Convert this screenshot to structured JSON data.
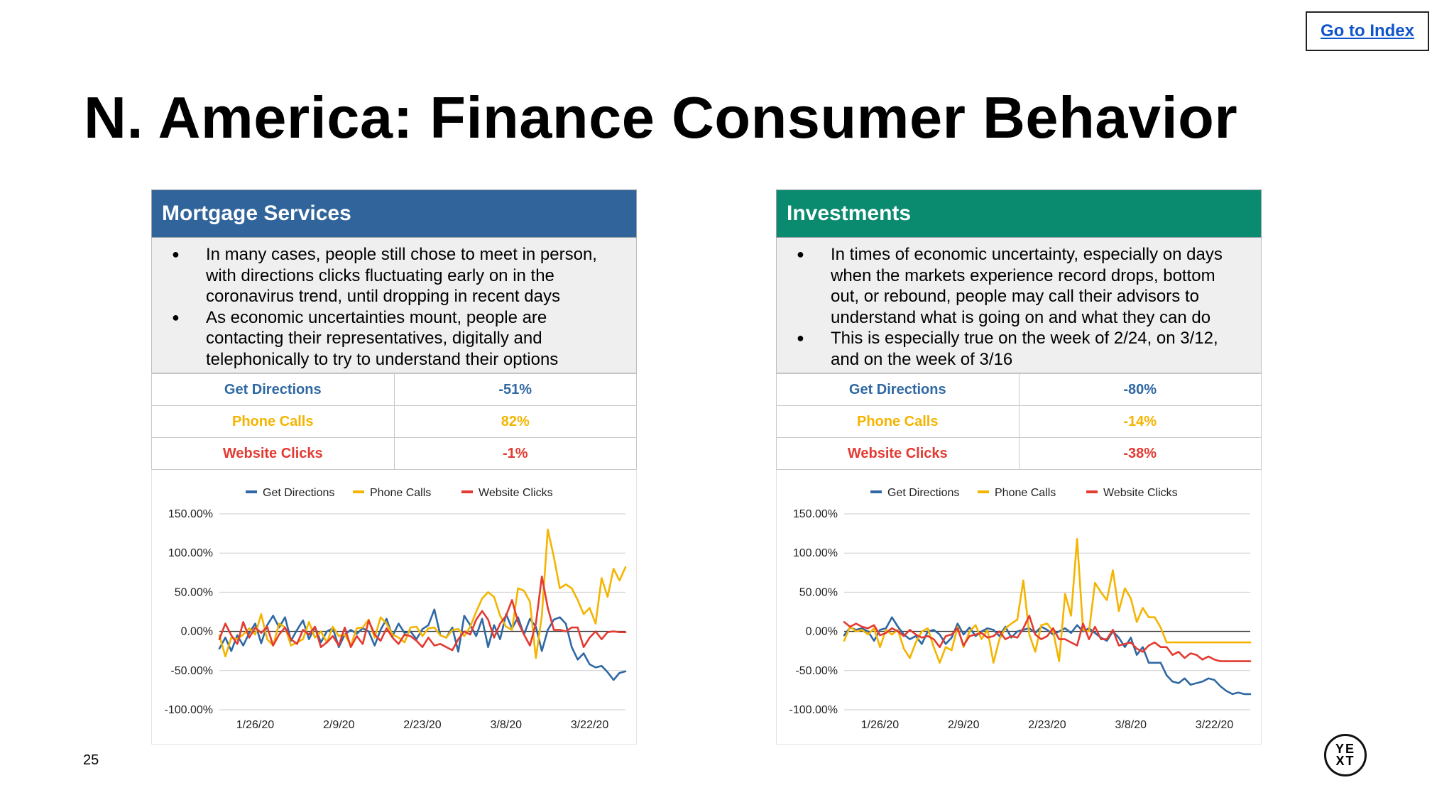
{
  "index_link": "Go to Index",
  "title": "N. America: Finance Consumer Behavior",
  "page_number": "25",
  "logo": {
    "line1": "YE",
    "line2": "XT"
  },
  "colors": {
    "mortgage_header": "#31649a",
    "invest_header": "#0a8a6e",
    "get_directions": "#2f68a3",
    "phone_calls": "#f4b400",
    "website_clicks": "#e33a31"
  },
  "panels": [
    {
      "id": "mortgage",
      "header": "Mortgage Services",
      "notes": [
        "In many cases, people still chose to meet in person, with directions clicks fluctuating early on in the coronavirus trend, until dropping in recent days",
        "As economic uncertainties mount, people are contacting their representatives, digitally and telephonically to try to understand their options"
      ],
      "metrics": [
        {
          "label": "Get Directions",
          "value": "-51%"
        },
        {
          "label": "Phone Calls",
          "value": "82%"
        },
        {
          "label": "Website Clicks",
          "value": "-1%"
        }
      ]
    },
    {
      "id": "investments",
      "header": "Investments",
      "notes": [
        "In times of economic uncertainty, especially on days when the markets experience record drops, bottom out, or rebound, people may call their advisors to understand what is going on and what they can do",
        "This is especially true on the week of 2/24, on 3/12, and on the week of 3/16"
      ],
      "metrics": [
        {
          "label": "Get Directions",
          "value": "-80%"
        },
        {
          "label": "Phone Calls",
          "value": "-14%"
        },
        {
          "label": "Website Clicks",
          "value": "-38%"
        }
      ]
    }
  ],
  "chart_data": [
    {
      "type": "line",
      "title": "Mortgage Services",
      "x_dates": [
        "1/20/20",
        "1/21/20",
        "1/22/20",
        "1/23/20",
        "1/24/20",
        "1/25/20",
        "1/26/20",
        "1/27/20",
        "1/28/20",
        "1/29/20",
        "1/30/20",
        "1/31/20",
        "2/1/20",
        "2/2/20",
        "2/3/20",
        "2/4/20",
        "2/5/20",
        "2/6/20",
        "2/7/20",
        "2/8/20",
        "2/9/20",
        "2/10/20",
        "2/11/20",
        "2/12/20",
        "2/13/20",
        "2/14/20",
        "2/15/20",
        "2/16/20",
        "2/17/20",
        "2/18/20",
        "2/19/20",
        "2/20/20",
        "2/21/20",
        "2/22/20",
        "2/23/20",
        "2/24/20",
        "2/25/20",
        "2/26/20",
        "2/27/20",
        "2/28/20",
        "2/29/20",
        "3/1/20",
        "3/2/20",
        "3/3/20",
        "3/4/20",
        "3/5/20",
        "3/6/20",
        "3/7/20",
        "3/8/20",
        "3/9/20",
        "3/10/20",
        "3/11/20",
        "3/12/20",
        "3/13/20",
        "3/14/20",
        "3/15/20",
        "3/16/20",
        "3/17/20",
        "3/18/20",
        "3/19/20",
        "3/20/20",
        "3/21/20",
        "3/22/20",
        "3/23/20",
        "3/24/20",
        "3/25/20",
        "3/26/20",
        "3/27/20",
        "3/28/20"
      ],
      "x_ticks": [
        "1/26/20",
        "2/9/20",
        "2/23/20",
        "3/8/20",
        "3/22/20"
      ],
      "y_ticks": [
        "150.00%",
        "100.00%",
        "50.00%",
        "0.00%",
        "-50.00%",
        "-100.00%"
      ],
      "ylim": [
        -100,
        150
      ],
      "legend": "top-center",
      "series": [
        {
          "name": "Get Directions",
          "values": [
            -22,
            -8,
            -25,
            -5,
            -18,
            -2,
            10,
            -15,
            8,
            20,
            5,
            18,
            -12,
            2,
            14,
            -10,
            6,
            -14,
            0,
            4,
            -20,
            -4,
            2,
            -3,
            4,
            0,
            -18,
            2,
            16,
            -6,
            10,
            -2,
            0,
            -10,
            3,
            8,
            28,
            -5,
            -8,
            5,
            -26,
            20,
            8,
            -6,
            16,
            -20,
            8,
            -10,
            22,
            4,
            18,
            -4,
            16,
            6,
            -25,
            2,
            15,
            18,
            10,
            -20,
            -36,
            -28,
            -42,
            -46,
            -44,
            -52,
            -62,
            -53,
            -51
          ]
        },
        {
          "name": "Phone Calls",
          "values": [
            -5,
            -32,
            -8,
            -10,
            -4,
            4,
            -4,
            22,
            -10,
            -18,
            10,
            5,
            -18,
            -14,
            -10,
            12,
            -8,
            0,
            -14,
            6,
            -6,
            -4,
            -18,
            4,
            5,
            15,
            -8,
            18,
            10,
            -4,
            -8,
            -14,
            5,
            6,
            -6,
            4,
            5,
            -5,
            -8,
            2,
            3,
            -6,
            6,
            25,
            42,
            50,
            44,
            20,
            6,
            2,
            55,
            52,
            38,
            -34,
            20,
            130,
            95,
            55,
            60,
            55,
            40,
            22,
            30,
            10,
            68,
            44,
            80,
            65,
            82
          ]
        },
        {
          "name": "Website Clicks",
          "values": [
            -10,
            10,
            -5,
            -16,
            12,
            -8,
            5,
            -2,
            6,
            -18,
            -4,
            5,
            -10,
            -16,
            2,
            -4,
            6,
            -20,
            -14,
            -6,
            -18,
            5,
            -20,
            -6,
            -16,
            14,
            -4,
            -12,
            4,
            -8,
            -16,
            -4,
            -6,
            -12,
            -20,
            -8,
            -18,
            -16,
            -20,
            -24,
            -10,
            0,
            -4,
            15,
            26,
            15,
            -8,
            10,
            20,
            40,
            12,
            -4,
            -18,
            10,
            70,
            30,
            2,
            2,
            0,
            5,
            5,
            -20,
            -8,
            0,
            -10,
            -1,
            0,
            -1,
            -1
          ]
        }
      ]
    },
    {
      "type": "line",
      "title": "Investments",
      "x_dates": [
        "1/20/20",
        "1/21/20",
        "1/22/20",
        "1/23/20",
        "1/24/20",
        "1/25/20",
        "1/26/20",
        "1/27/20",
        "1/28/20",
        "1/29/20",
        "1/30/20",
        "1/31/20",
        "2/1/20",
        "2/2/20",
        "2/3/20",
        "2/4/20",
        "2/5/20",
        "2/6/20",
        "2/7/20",
        "2/8/20",
        "2/9/20",
        "2/10/20",
        "2/11/20",
        "2/12/20",
        "2/13/20",
        "2/14/20",
        "2/15/20",
        "2/16/20",
        "2/17/20",
        "2/18/20",
        "2/19/20",
        "2/20/20",
        "2/21/20",
        "2/22/20",
        "2/23/20",
        "2/24/20",
        "2/25/20",
        "2/26/20",
        "2/27/20",
        "2/28/20",
        "2/29/20",
        "3/1/20",
        "3/2/20",
        "3/3/20",
        "3/4/20",
        "3/5/20",
        "3/6/20",
        "3/7/20",
        "3/8/20",
        "3/9/20",
        "3/10/20",
        "3/11/20",
        "3/12/20",
        "3/13/20",
        "3/14/20",
        "3/15/20",
        "3/16/20",
        "3/17/20",
        "3/18/20",
        "3/19/20",
        "3/20/20",
        "3/21/20",
        "3/22/20",
        "3/23/20",
        "3/24/20",
        "3/25/20",
        "3/26/20",
        "3/27/20",
        "3/28/20"
      ],
      "x_ticks": [
        "1/26/20",
        "2/9/20",
        "2/23/20",
        "3/8/20",
        "3/22/20"
      ],
      "y_ticks": [
        "150.00%",
        "100.00%",
        "50.00%",
        "0.00%",
        "-50.00%",
        "-100.00%"
      ],
      "ylim": [
        -100,
        150
      ],
      "legend": "top-center",
      "series": [
        {
          "name": "Get Directions",
          "values": [
            -5,
            5,
            2,
            4,
            0,
            -12,
            2,
            4,
            18,
            6,
            -4,
            -10,
            -6,
            -16,
            0,
            2,
            -4,
            -16,
            -8,
            10,
            -4,
            5,
            -6,
            0,
            4,
            2,
            -6,
            6,
            -8,
            0,
            2,
            4,
            -2,
            6,
            2,
            -4,
            0,
            4,
            -2,
            8,
            0,
            4,
            -2,
            -8,
            -12,
            0,
            -8,
            -20,
            -8,
            -30,
            -20,
            -40,
            -40,
            -40,
            -56,
            -64,
            -66,
            -60,
            -68,
            -66,
            -64,
            -60,
            -62,
            -70,
            -76,
            -80,
            -78,
            -80,
            -80
          ]
        },
        {
          "name": "Phone Calls",
          "values": [
            -12,
            6,
            0,
            2,
            -4,
            4,
            -20,
            2,
            -4,
            2,
            -22,
            -34,
            -14,
            0,
            4,
            -20,
            -40,
            -20,
            -24,
            6,
            -20,
            0,
            8,
            -10,
            2,
            -40,
            -10,
            4,
            10,
            15,
            65,
            -4,
            -26,
            8,
            10,
            0,
            -38,
            48,
            20,
            118,
            2,
            0,
            62,
            50,
            40,
            78,
            26,
            55,
            42,
            12,
            30,
            18,
            18,
            5,
            -14,
            -14,
            -14,
            -14,
            -14,
            -14,
            -14,
            -14,
            -14,
            -14,
            -14,
            -14,
            -14,
            -14,
            -14
          ]
        },
        {
          "name": "Website Clicks",
          "values": [
            12,
            6,
            10,
            6,
            4,
            8,
            -5,
            -2,
            4,
            0,
            -6,
            2,
            -4,
            -8,
            -6,
            -10,
            -20,
            -6,
            -4,
            4,
            -18,
            -6,
            -4,
            -2,
            -8,
            -6,
            0,
            -10,
            -6,
            -8,
            4,
            20,
            -4,
            -10,
            -6,
            4,
            -10,
            -10,
            -14,
            -18,
            10,
            -10,
            6,
            -10,
            -10,
            2,
            -18,
            -16,
            -14,
            -22,
            -26,
            -18,
            -14,
            -20,
            -20,
            -30,
            -26,
            -34,
            -28,
            -30,
            -36,
            -32,
            -36,
            -38,
            -38,
            -38,
            -38,
            -38,
            -38
          ]
        }
      ]
    }
  ]
}
